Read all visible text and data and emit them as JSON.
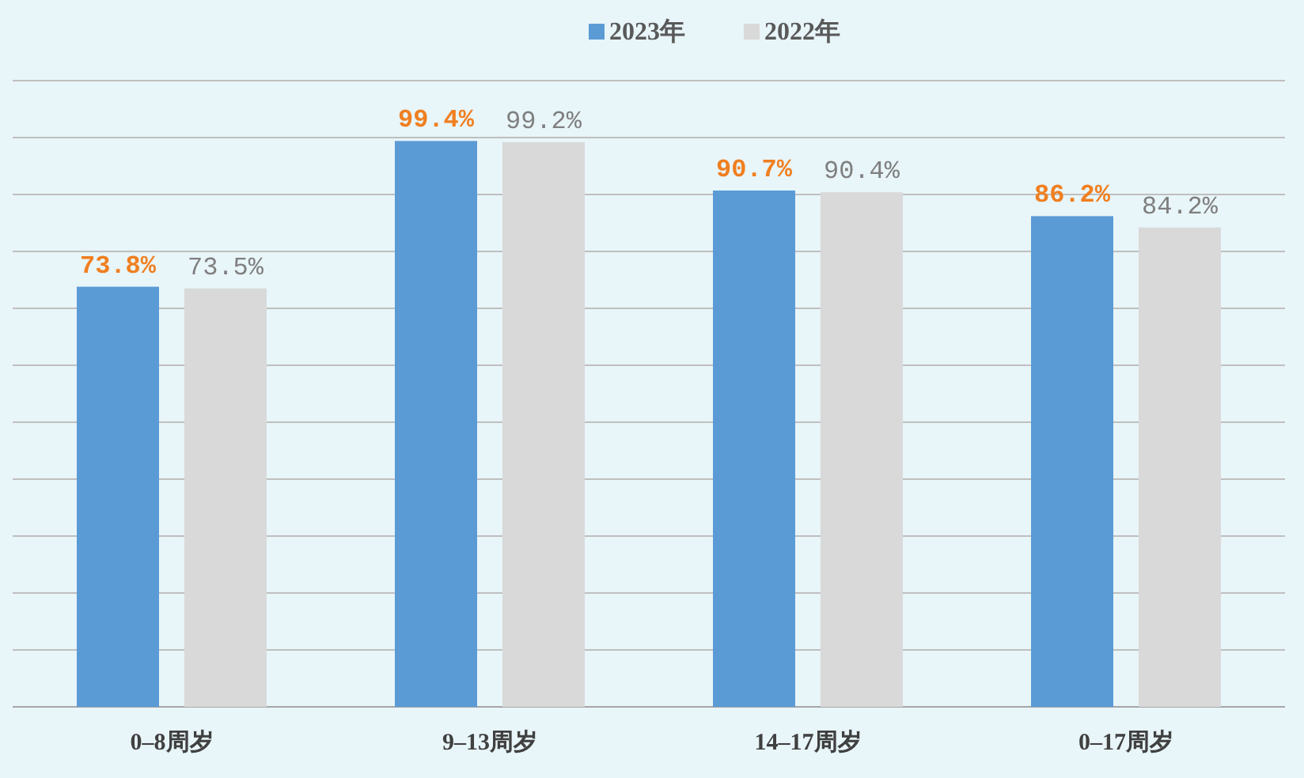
{
  "chart_data": {
    "type": "bar",
    "categories": [
      "0–8周岁",
      "9–13周岁",
      "14–17周岁",
      "0–17周岁"
    ],
    "series": [
      {
        "name": "2023年",
        "color": "#5b9bd5",
        "values": [
          73.8,
          99.4,
          90.7,
          86.2
        ],
        "value_labels": [
          "73.8%",
          "99.4%",
          "90.7%",
          "86.2%"
        ]
      },
      {
        "name": "2022年",
        "color": "#d9d9d9",
        "values": [
          73.5,
          99.2,
          90.4,
          84.2
        ],
        "value_labels": [
          "73.5%",
          "99.2%",
          "90.4%",
          "84.2%"
        ]
      }
    ],
    "ylim": [
      0,
      110
    ],
    "yticks": [
      {
        "value": 0,
        "label": null
      },
      {
        "value": 10,
        "label": null
      },
      {
        "value": 20,
        "label": null
      },
      {
        "value": 30,
        "label": null
      },
      {
        "value": 40,
        "label": null
      },
      {
        "value": 50,
        "label": null
      },
      {
        "value": 60,
        "label": null
      },
      {
        "value": 70,
        "label": null
      },
      {
        "value": 80,
        "label": null
      },
      {
        "value": 90,
        "label": null
      },
      {
        "value": 100,
        "label": null
      },
      {
        "value": 110,
        "label": null
      }
    ],
    "grid": "y",
    "legend": "top",
    "tick_labels": "x"
  }
}
